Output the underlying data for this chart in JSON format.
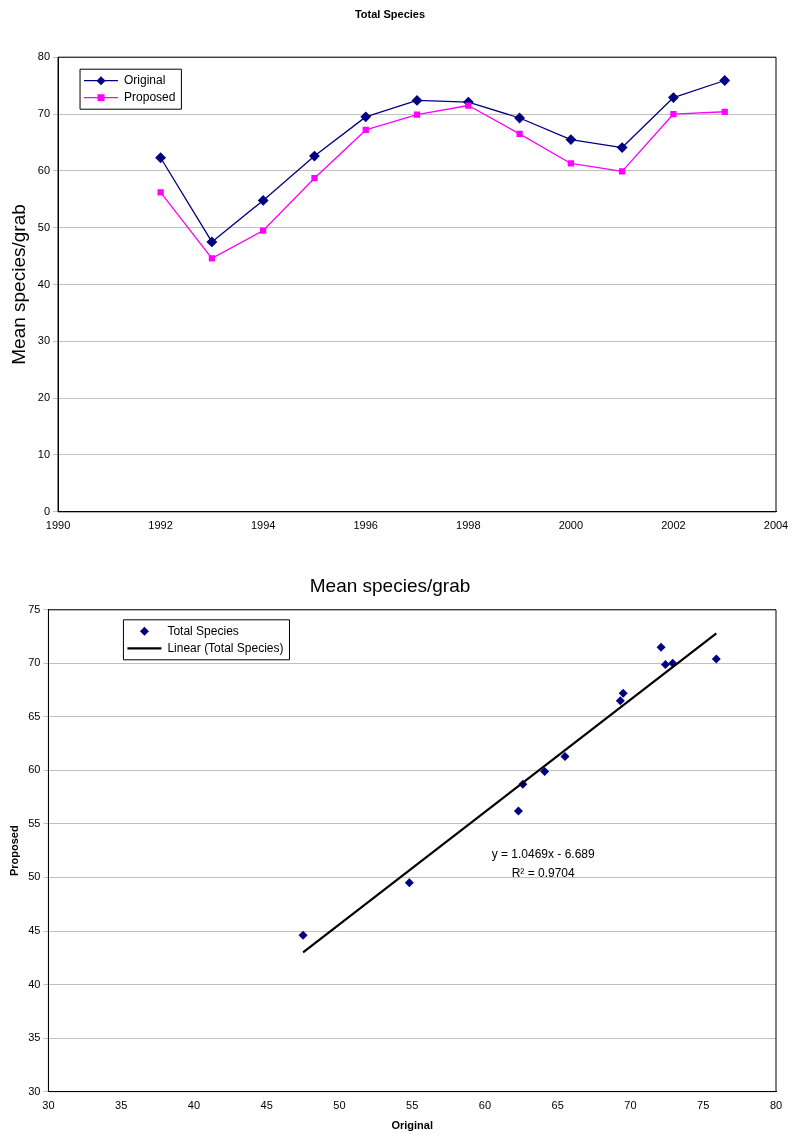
{
  "chart_data": [
    {
      "type": "line",
      "title": "Total Species",
      "ylabel": "Mean species/grab",
      "x": [
        1992,
        1993,
        1994,
        1995,
        1996,
        1997,
        1998,
        1999,
        2000,
        2001,
        2002,
        2003
      ],
      "series": [
        {
          "name": "Original",
          "color": "#000080",
          "marker": "diamond",
          "values": [
            62.3,
            47.5,
            54.8,
            62.6,
            69.5,
            72.4,
            72.1,
            69.3,
            65.5,
            64.1,
            72.9,
            75.9
          ]
        },
        {
          "name": "Proposed",
          "color": "#ff00ff",
          "marker": "square",
          "values": [
            56.2,
            44.6,
            49.5,
            58.7,
            67.2,
            69.9,
            71.5,
            66.5,
            61.3,
            59.9,
            70.0,
            70.4
          ]
        }
      ],
      "xlim": [
        1990,
        2004
      ],
      "xticks": [
        1990,
        1992,
        1994,
        1996,
        1998,
        2000,
        2002,
        2004
      ],
      "ylim": [
        0,
        80
      ],
      "yticks": [
        0,
        10,
        20,
        30,
        40,
        50,
        60,
        70,
        80
      ],
      "grid": "y",
      "legend": "top left"
    },
    {
      "type": "scatter",
      "title": "Mean species/grab",
      "xlabel": "Original",
      "ylabel": "Proposed",
      "series": [
        {
          "name": "Total Species",
          "color": "#000080",
          "marker": "diamond",
          "x": [
            62.3,
            47.5,
            54.8,
            62.6,
            69.5,
            72.4,
            72.1,
            69.3,
            65.5,
            64.1,
            72.9,
            75.9
          ],
          "values": [
            56.2,
            44.6,
            49.5,
            58.7,
            67.2,
            69.9,
            71.5,
            66.5,
            61.3,
            59.9,
            70.0,
            70.4
          ]
        },
        {
          "name": "Linear (Total Species)",
          "type": "line",
          "color": "#000000",
          "marker": "none",
          "x": [
            47.5,
            75.9
          ],
          "values": [
            43.0,
            72.8
          ]
        }
      ],
      "xlim": [
        30,
        80
      ],
      "xticks": [
        30,
        35,
        40,
        45,
        50,
        55,
        60,
        65,
        70,
        75,
        80
      ],
      "ylim": [
        30,
        75
      ],
      "yticks": [
        30,
        35,
        40,
        45,
        50,
        55,
        60,
        65,
        70,
        75
      ],
      "grid": "y",
      "legend": "top left",
      "annotations": [
        "y = 1.0469x - 6.689",
        "R² = 0.9704"
      ]
    }
  ]
}
